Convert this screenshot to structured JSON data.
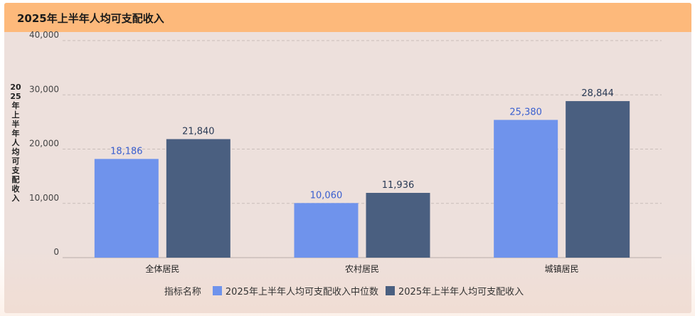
{
  "header": {
    "title": "2025年上半年人均可支配收入"
  },
  "colors": {
    "header_bg": "#fdb97b",
    "panel_bg": "#ede0dc",
    "series1": "#6f93ec",
    "series2": "#4a5f80",
    "label1": "#3a5fcf",
    "label2": "#2a3a55"
  },
  "chart_data": {
    "type": "bar",
    "categories": [
      "全体居民",
      "农村居民",
      "城镇居民"
    ],
    "series": [
      {
        "name": "2025年上半年人均可支配收入中位数",
        "values": [
          18186,
          10060,
          25380
        ],
        "labels": [
          "18,186",
          "10,060",
          "25,380"
        ]
      },
      {
        "name": "2025年上半年人均可支配收入",
        "values": [
          21840,
          11936,
          28844
        ],
        "labels": [
          "21,840",
          "11,936",
          "28,844"
        ]
      }
    ],
    "ylabel": "2025年上半年人均可支配收入",
    "ylim": [
      0,
      40000
    ],
    "yticks": [
      0,
      10000,
      20000,
      30000,
      40000
    ],
    "ytick_labels": [
      "0",
      "10,000",
      "20,000",
      "30,000",
      "40,000"
    ],
    "grid": true,
    "legend_title": "指标名称",
    "legend_position": "bottom"
  }
}
